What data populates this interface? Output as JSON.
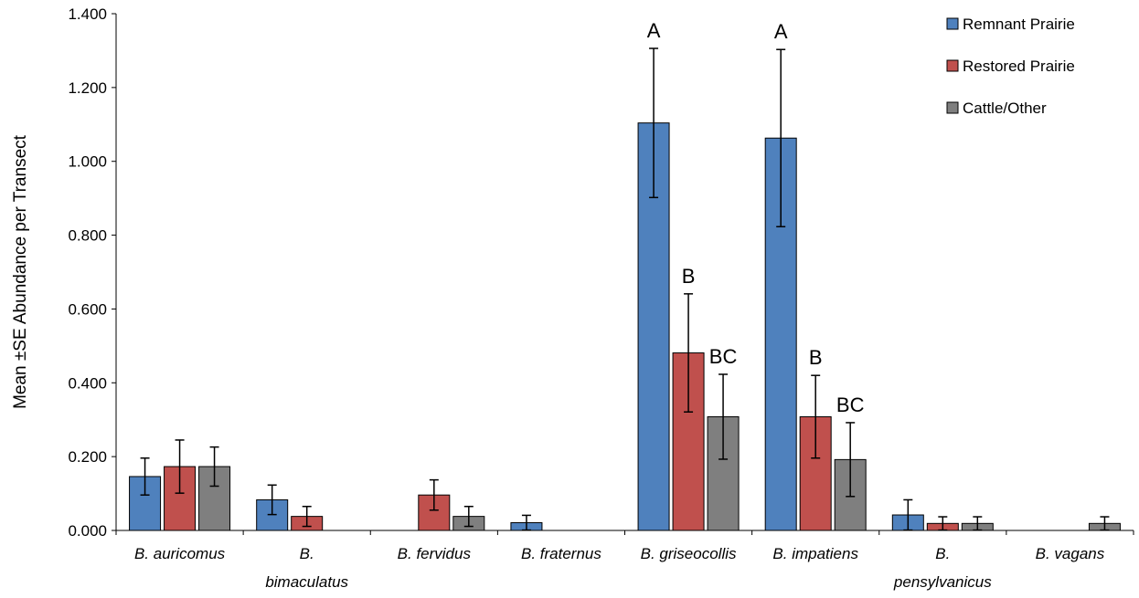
{
  "chart_data": {
    "type": "bar",
    "title": "",
    "xlabel": "",
    "ylabel": "Mean ±SE Abundance per Transect",
    "ylim": [
      0,
      1.4
    ],
    "yticks": [
      "0.000",
      "0.200",
      "0.400",
      "0.600",
      "0.800",
      "1.000",
      "1.200",
      "1.400"
    ],
    "grid": false,
    "legend_position": "top-right",
    "categories": [
      [
        "B. auricomus"
      ],
      [
        "B.",
        "bimaculatus"
      ],
      [
        "B. fervidus"
      ],
      [
        "B. fraternus"
      ],
      [
        "B. griseocollis"
      ],
      [
        "B. impatiens"
      ],
      [
        "B.",
        "pensylvanicus"
      ],
      [
        "B. vagans"
      ]
    ],
    "series": [
      {
        "name": "Remnant Prairie",
        "color": "#4f81bd",
        "values": [
          0.146,
          0.083,
          0.0,
          0.021,
          1.104,
          1.063,
          0.042,
          0.0
        ],
        "errors": [
          0.05,
          0.04,
          0.0,
          0.02,
          0.202,
          0.24,
          0.041,
          0.0
        ],
        "annotations": [
          "",
          "",
          "",
          "",
          "A",
          "A",
          "",
          ""
        ]
      },
      {
        "name": "Restored Prairie",
        "color": "#c0504d",
        "values": [
          0.173,
          0.038,
          0.096,
          0.0,
          0.481,
          0.308,
          0.019,
          0.0
        ],
        "errors": [
          0.072,
          0.027,
          0.041,
          0.0,
          0.16,
          0.112,
          0.018,
          0.0
        ],
        "annotations": [
          "",
          "",
          "",
          "",
          "B",
          "B",
          "",
          ""
        ]
      },
      {
        "name": "Cattle/Other",
        "color": "#7f7f7f",
        "values": [
          0.173,
          0.0,
          0.038,
          0.0,
          0.308,
          0.192,
          0.019,
          0.019
        ],
        "errors": [
          0.053,
          0.0,
          0.027,
          0.0,
          0.115,
          0.1,
          0.018,
          0.018
        ],
        "annotations": [
          "",
          "",
          "",
          "",
          "BC",
          "BC",
          "",
          ""
        ]
      }
    ]
  }
}
